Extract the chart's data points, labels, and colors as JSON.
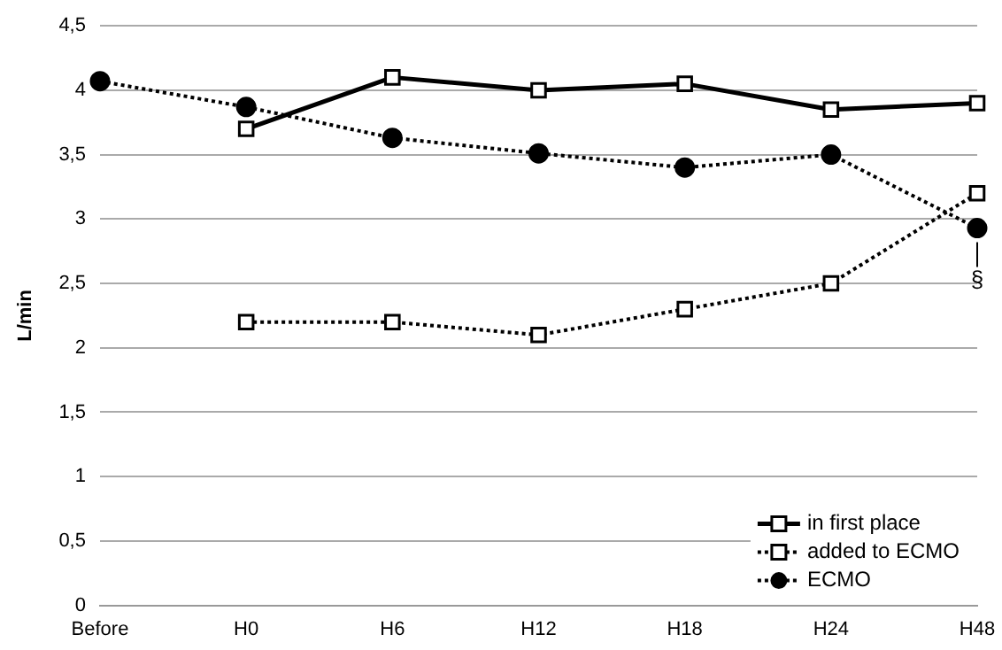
{
  "chart_data": {
    "type": "line",
    "ylabel": "L/min",
    "categories": [
      "Before",
      "H0",
      "H6",
      "H12",
      "H18",
      "H24",
      "H48"
    ],
    "series": [
      {
        "name": "in first place",
        "color": "#000000",
        "line_style": "solid",
        "marker": "square",
        "values": [
          null,
          3.7,
          4.1,
          4.0,
          4.05,
          3.85,
          3.9
        ]
      },
      {
        "name": "added to ECMO",
        "color": "#000000",
        "line_style": "dotted",
        "marker": "square",
        "values": [
          null,
          2.2,
          2.2,
          2.1,
          2.3,
          2.5,
          3.2
        ]
      },
      {
        "name": "ECMO",
        "color": "#000000",
        "line_style": "dotted",
        "marker": "circle",
        "values": [
          4.07,
          3.87,
          3.63,
          3.51,
          3.4,
          3.5,
          2.93
        ]
      }
    ],
    "ylim": [
      0,
      4.5
    ],
    "yticks": [
      0,
      {
        "value": 0.5,
        "label": "0,5"
      },
      1,
      {
        "value": 1.5,
        "label": "1,5"
      },
      2,
      {
        "value": 2.5,
        "label": "2,5"
      },
      3,
      {
        "value": 3.5,
        "label": "3,5"
      },
      4,
      {
        "value": 4.5,
        "label": "4,5"
      }
    ],
    "grid": "y",
    "legend": "bottom right",
    "annotations": [
      {
        "text": "§",
        "x": "H48",
        "y": 2.93
      }
    ]
  }
}
